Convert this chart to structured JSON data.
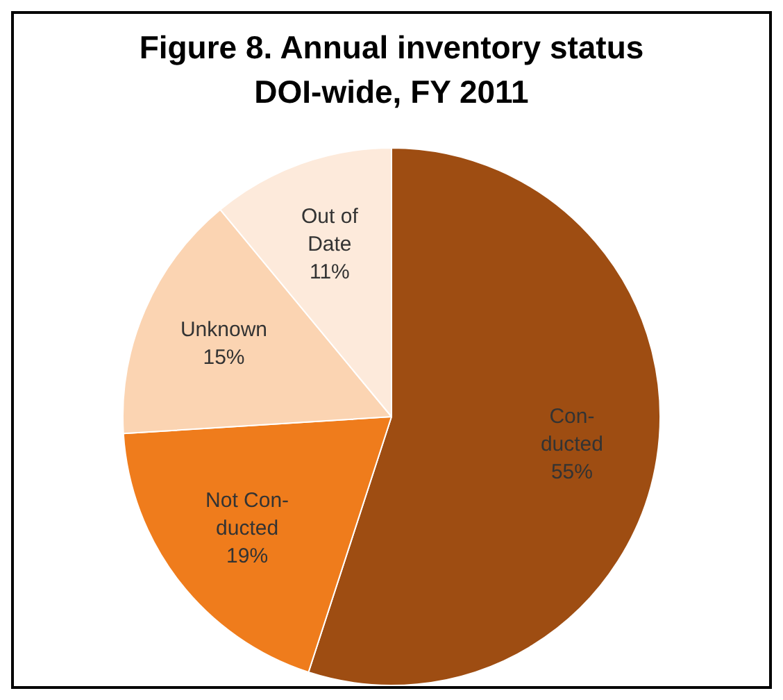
{
  "chart_data": {
    "type": "pie",
    "title": "Figure 8. Annual inventory status DOI-wide, FY 2011",
    "categories": [
      "Con-ducted",
      "Not Con-ducted",
      "Unknown",
      "Out of Date"
    ],
    "values": [
      55,
      19,
      15,
      11
    ],
    "colors": [
      "#9e4d12",
      "#ef7c1c",
      "#fbd4b2",
      "#fdeadb"
    ],
    "value_labels": [
      "55%",
      "19%",
      "15%",
      "11%"
    ],
    "legend": false
  }
}
